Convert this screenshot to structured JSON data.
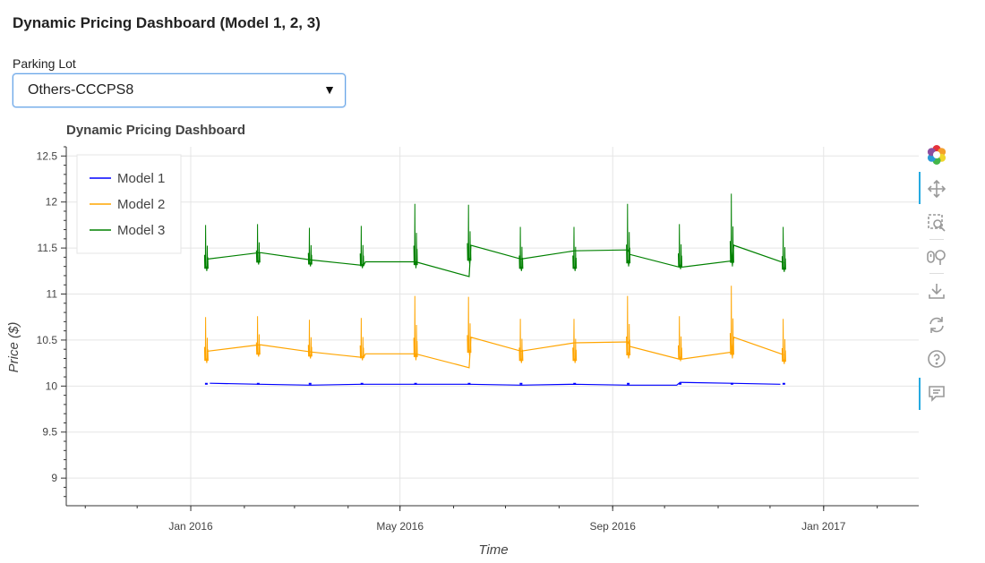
{
  "page": {
    "title": "Dynamic Pricing Dashboard (Model 1, 2, 3)"
  },
  "selector": {
    "label": "Parking Lot",
    "value": "Others-CCCPS8"
  },
  "chart_data": {
    "type": "line",
    "title": "Dynamic Pricing Dashboard",
    "xlabel": "Time",
    "ylabel": "Price ($)",
    "x_axis_type": "datetime",
    "xlim": [
      "2015-10-21",
      "2017-02-25"
    ],
    "ylim": [
      8.7,
      12.6
    ],
    "x_ticks": [
      {
        "date": "2016-01-01",
        "label": "Jan 2016"
      },
      {
        "date": "2016-05-01",
        "label": "May 2016"
      },
      {
        "date": "2016-09-01",
        "label": "Sep 2016"
      },
      {
        "date": "2017-01-01",
        "label": "Jan 2017"
      }
    ],
    "y_ticks": [
      9,
      9.5,
      10,
      10.5,
      11,
      11.5,
      12,
      12.5
    ],
    "grid": true,
    "legend_position": "top-left",
    "series": [
      {
        "name": "Model 1",
        "color": "#0000ff",
        "points": [
          [
            "2016-01-12",
            10.03
          ],
          [
            "2016-02-10",
            10.02
          ],
          [
            "2016-03-10",
            10.01
          ],
          [
            "2016-04-09",
            10.02
          ],
          [
            "2016-05-10",
            10.02
          ],
          [
            "2016-06-10",
            10.02
          ],
          [
            "2016-07-10",
            10.01
          ],
          [
            "2016-08-10",
            10.02
          ],
          [
            "2016-09-10",
            10.01
          ],
          [
            "2016-10-08",
            10.01
          ],
          [
            "2016-10-10",
            10.04
          ],
          [
            "2016-11-08",
            10.03
          ],
          [
            "2016-12-07",
            10.02
          ]
        ]
      },
      {
        "name": "Model 2",
        "color": "#ffa500",
        "points": [
          [
            "2016-01-11",
            10.38
          ],
          [
            "2016-02-10",
            10.45
          ],
          [
            "2016-03-11",
            10.37
          ],
          [
            "2016-04-10",
            10.31
          ],
          [
            "2016-04-11",
            10.35
          ],
          [
            "2016-05-10",
            10.35
          ],
          [
            "2016-06-10",
            10.2
          ],
          [
            "2016-06-11",
            10.53
          ],
          [
            "2016-07-10",
            10.38
          ],
          [
            "2016-08-10",
            10.47
          ],
          [
            "2016-09-10",
            10.48
          ],
          [
            "2016-09-11",
            10.43
          ],
          [
            "2016-10-10",
            10.29
          ],
          [
            "2016-11-09",
            10.37
          ],
          [
            "2016-11-10",
            10.53
          ],
          [
            "2016-12-09",
            10.34
          ]
        ]
      },
      {
        "name": "Model 3",
        "color": "#008000",
        "points": [
          [
            "2016-01-11",
            11.38
          ],
          [
            "2016-02-10",
            11.45
          ],
          [
            "2016-03-11",
            11.37
          ],
          [
            "2016-04-10",
            11.31
          ],
          [
            "2016-04-11",
            11.35
          ],
          [
            "2016-05-10",
            11.35
          ],
          [
            "2016-06-10",
            11.19
          ],
          [
            "2016-06-11",
            11.53
          ],
          [
            "2016-07-10",
            11.38
          ],
          [
            "2016-08-10",
            11.47
          ],
          [
            "2016-09-10",
            11.48
          ],
          [
            "2016-09-11",
            11.43
          ],
          [
            "2016-10-10",
            11.29
          ],
          [
            "2016-11-09",
            11.36
          ],
          [
            "2016-11-10",
            11.53
          ],
          [
            "2016-12-09",
            11.34
          ]
        ]
      }
    ],
    "daily_spikes": [
      {
        "date": "2016-01-10",
        "max3": 11.75,
        "min3": 11.25
      },
      {
        "date": "2016-02-09",
        "max3": 11.76,
        "min3": 11.32
      },
      {
        "date": "2016-03-10",
        "max3": 11.72,
        "min3": 11.3
      },
      {
        "date": "2016-04-09",
        "max3": 11.74,
        "min3": 11.28
      },
      {
        "date": "2016-05-10",
        "max3": 11.98,
        "min3": 11.28
      },
      {
        "date": "2016-06-10",
        "max3": 11.97,
        "min3": 11.33
      },
      {
        "date": "2016-07-10",
        "max3": 11.73,
        "min3": 11.25
      },
      {
        "date": "2016-08-10",
        "max3": 11.73,
        "min3": 11.25
      },
      {
        "date": "2016-09-10",
        "max3": 11.98,
        "min3": 11.3
      },
      {
        "date": "2016-10-10",
        "max3": 11.76,
        "min3": 11.27
      },
      {
        "date": "2016-11-09",
        "max3": 12.09,
        "min3": 11.3
      },
      {
        "date": "2016-12-09",
        "max3": 11.73,
        "min3": 11.24
      }
    ]
  },
  "toolbar": [
    {
      "name": "bokeh-logo-icon"
    },
    {
      "name": "pan-tool-icon",
      "active": true
    },
    {
      "name": "box-zoom-tool-icon"
    },
    {
      "name": "wheel-zoom-tool-icon"
    },
    {
      "name": "save-tool-icon"
    },
    {
      "name": "reset-tool-icon"
    },
    {
      "name": "help-tool-icon"
    },
    {
      "name": "hover-tool-icon",
      "active": true
    }
  ]
}
